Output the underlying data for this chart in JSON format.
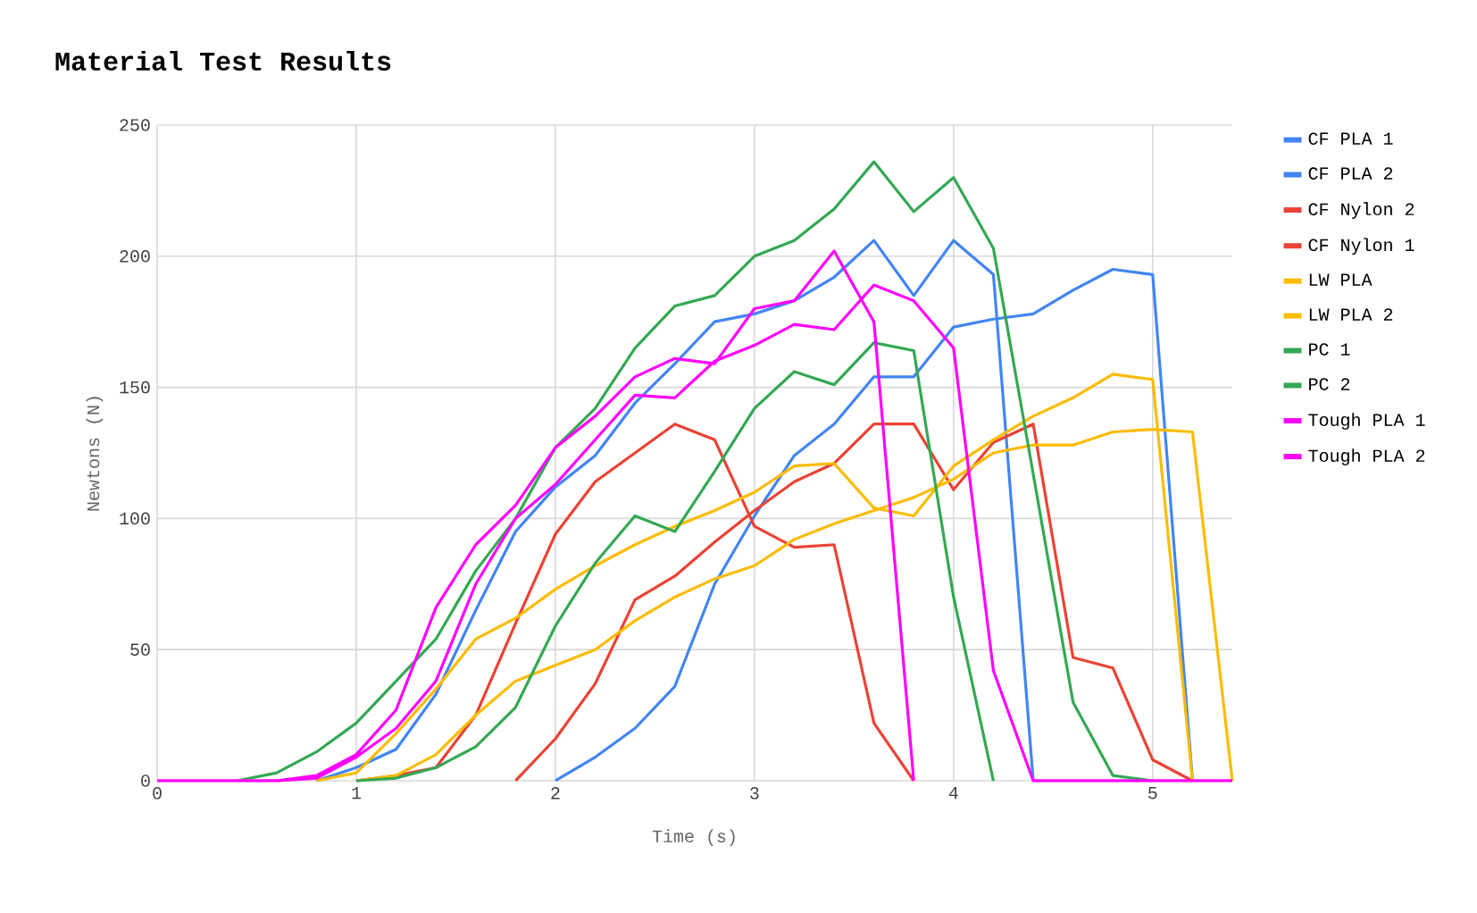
{
  "chart_data": {
    "type": "line",
    "title": "Material Test Results",
    "xlabel": "Time (s)",
    "ylabel": "Newtons (N)",
    "x": [
      0,
      0.2,
      0.4,
      0.6,
      0.8,
      1.0,
      1.2,
      1.4,
      1.6,
      1.8,
      2.0,
      2.2,
      2.4,
      2.6,
      2.8,
      3.0,
      3.2,
      3.4,
      3.6,
      3.8,
      4.0,
      4.2,
      4.4,
      4.6,
      4.8,
      5.0,
      5.2,
      5.4
    ],
    "xlim": [
      0,
      5.4
    ],
    "ylim": [
      0,
      250
    ],
    "xticks": [
      0,
      1,
      2,
      3,
      4,
      5
    ],
    "yticks": [
      0,
      50,
      100,
      150,
      200,
      250
    ],
    "grid": true,
    "legend": "top right",
    "marker": "none",
    "line_style": "solid",
    "series": [
      {
        "name": "CF PLA 1",
        "color": "#4285f4",
        "values": [
          null,
          null,
          null,
          null,
          0,
          5,
          12,
          33,
          65,
          95,
          112,
          124,
          144,
          159,
          175,
          178,
          183,
          192,
          206,
          185,
          206,
          193,
          0,
          null,
          null,
          null,
          null,
          null
        ]
      },
      {
        "name": "CF PLA 2",
        "color": "#4285f4",
        "values": [
          null,
          null,
          null,
          null,
          null,
          null,
          null,
          null,
          null,
          null,
          0,
          9,
          20,
          36,
          75,
          101,
          124,
          136,
          154,
          154,
          173,
          176,
          178,
          187,
          195,
          193,
          0,
          null
        ]
      },
      {
        "name": "CF Nylon 2",
        "color": "#ea4335",
        "values": [
          null,
          null,
          null,
          null,
          null,
          0,
          2,
          5,
          25,
          60,
          94,
          114,
          125,
          136,
          130,
          97,
          89,
          90,
          22,
          0,
          null,
          null,
          null,
          null,
          null,
          null,
          null,
          null
        ]
      },
      {
        "name": "CF Nylon 1",
        "color": "#ea4335",
        "values": [
          null,
          null,
          null,
          null,
          null,
          null,
          null,
          null,
          null,
          0,
          16,
          37,
          69,
          78,
          91,
          103,
          114,
          121,
          136,
          136,
          111,
          129,
          136,
          47,
          43,
          8,
          0,
          null
        ]
      },
      {
        "name": "LW PLA",
        "color": "#fbbc04",
        "values": [
          null,
          null,
          null,
          null,
          0,
          3,
          18,
          35,
          54,
          62,
          73,
          82,
          90,
          97,
          103,
          110,
          120,
          121,
          104,
          101,
          120,
          130,
          139,
          146,
          155,
          153,
          0,
          null
        ]
      },
      {
        "name": "LW PLA 2",
        "color": "#fbbc04",
        "values": [
          null,
          null,
          null,
          null,
          null,
          0,
          2,
          10,
          25,
          38,
          44,
          50,
          61,
          70,
          77,
          82,
          92,
          98,
          103,
          108,
          115,
          125,
          128,
          128,
          133,
          134,
          133,
          0
        ]
      },
      {
        "name": "PC 1",
        "color": "#34a853",
        "values": [
          null,
          null,
          0,
          3,
          11,
          22,
          38,
          54,
          80,
          100,
          127,
          142,
          165,
          181,
          185,
          200,
          206,
          218,
          236,
          217,
          230,
          203,
          117,
          30,
          2,
          0,
          null,
          null
        ]
      },
      {
        "name": "PC 2",
        "color": "#34a853",
        "values": [
          null,
          null,
          null,
          null,
          null,
          0,
          1,
          5,
          13,
          28,
          59,
          83,
          101,
          95,
          118,
          142,
          156,
          151,
          167,
          164,
          70,
          0,
          null,
          null,
          null,
          null,
          null,
          null
        ]
      },
      {
        "name": "Tough PLA 1",
        "color": "#ff00ff",
        "values": [
          null,
          null,
          null,
          0,
          2,
          10,
          27,
          66,
          90,
          105,
          127,
          139,
          154,
          161,
          159,
          180,
          183,
          202,
          175,
          0,
          null,
          null,
          null,
          null,
          null,
          null,
          null,
          null
        ]
      },
      {
        "name": "Tough PLA 2",
        "color": "#ff00ff",
        "values": [
          0,
          0,
          0,
          0,
          1,
          9,
          20,
          38,
          75,
          100,
          113,
          130,
          147,
          146,
          160,
          166,
          174,
          172,
          189,
          183,
          165,
          42,
          0,
          0,
          0,
          0,
          0,
          0
        ]
      }
    ]
  }
}
